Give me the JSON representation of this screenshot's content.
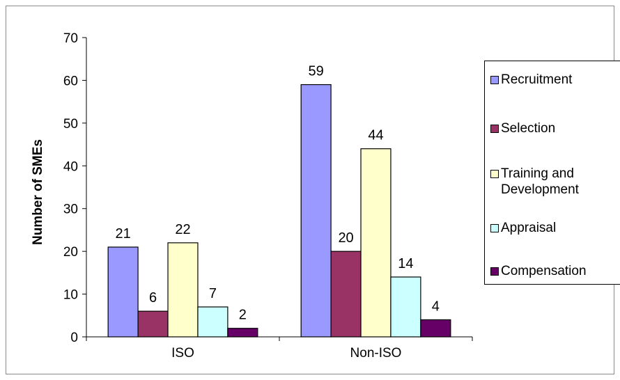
{
  "chart_data": {
    "type": "bar",
    "categories": [
      "ISO",
      "Non-ISO"
    ],
    "ylabel": "Number of SMEs",
    "ylim": [
      0,
      70
    ],
    "yticks": [
      0,
      10,
      20,
      30,
      40,
      50,
      60,
      70
    ],
    "grid": false,
    "legend_position": "right",
    "series": [
      {
        "name": "Recruitment",
        "values": [
          21,
          59
        ],
        "color": "#9999ff"
      },
      {
        "name": "Selection",
        "values": [
          6,
          20
        ],
        "color": "#993366"
      },
      {
        "name": "Training and\nDevelopment",
        "values": [
          22,
          44
        ],
        "color": "#ffffcc"
      },
      {
        "name": "Appraisal",
        "values": [
          7,
          14
        ],
        "color": "#ccffff"
      },
      {
        "name": "Compensation",
        "values": [
          2,
          4
        ],
        "color": "#660066"
      }
    ]
  }
}
